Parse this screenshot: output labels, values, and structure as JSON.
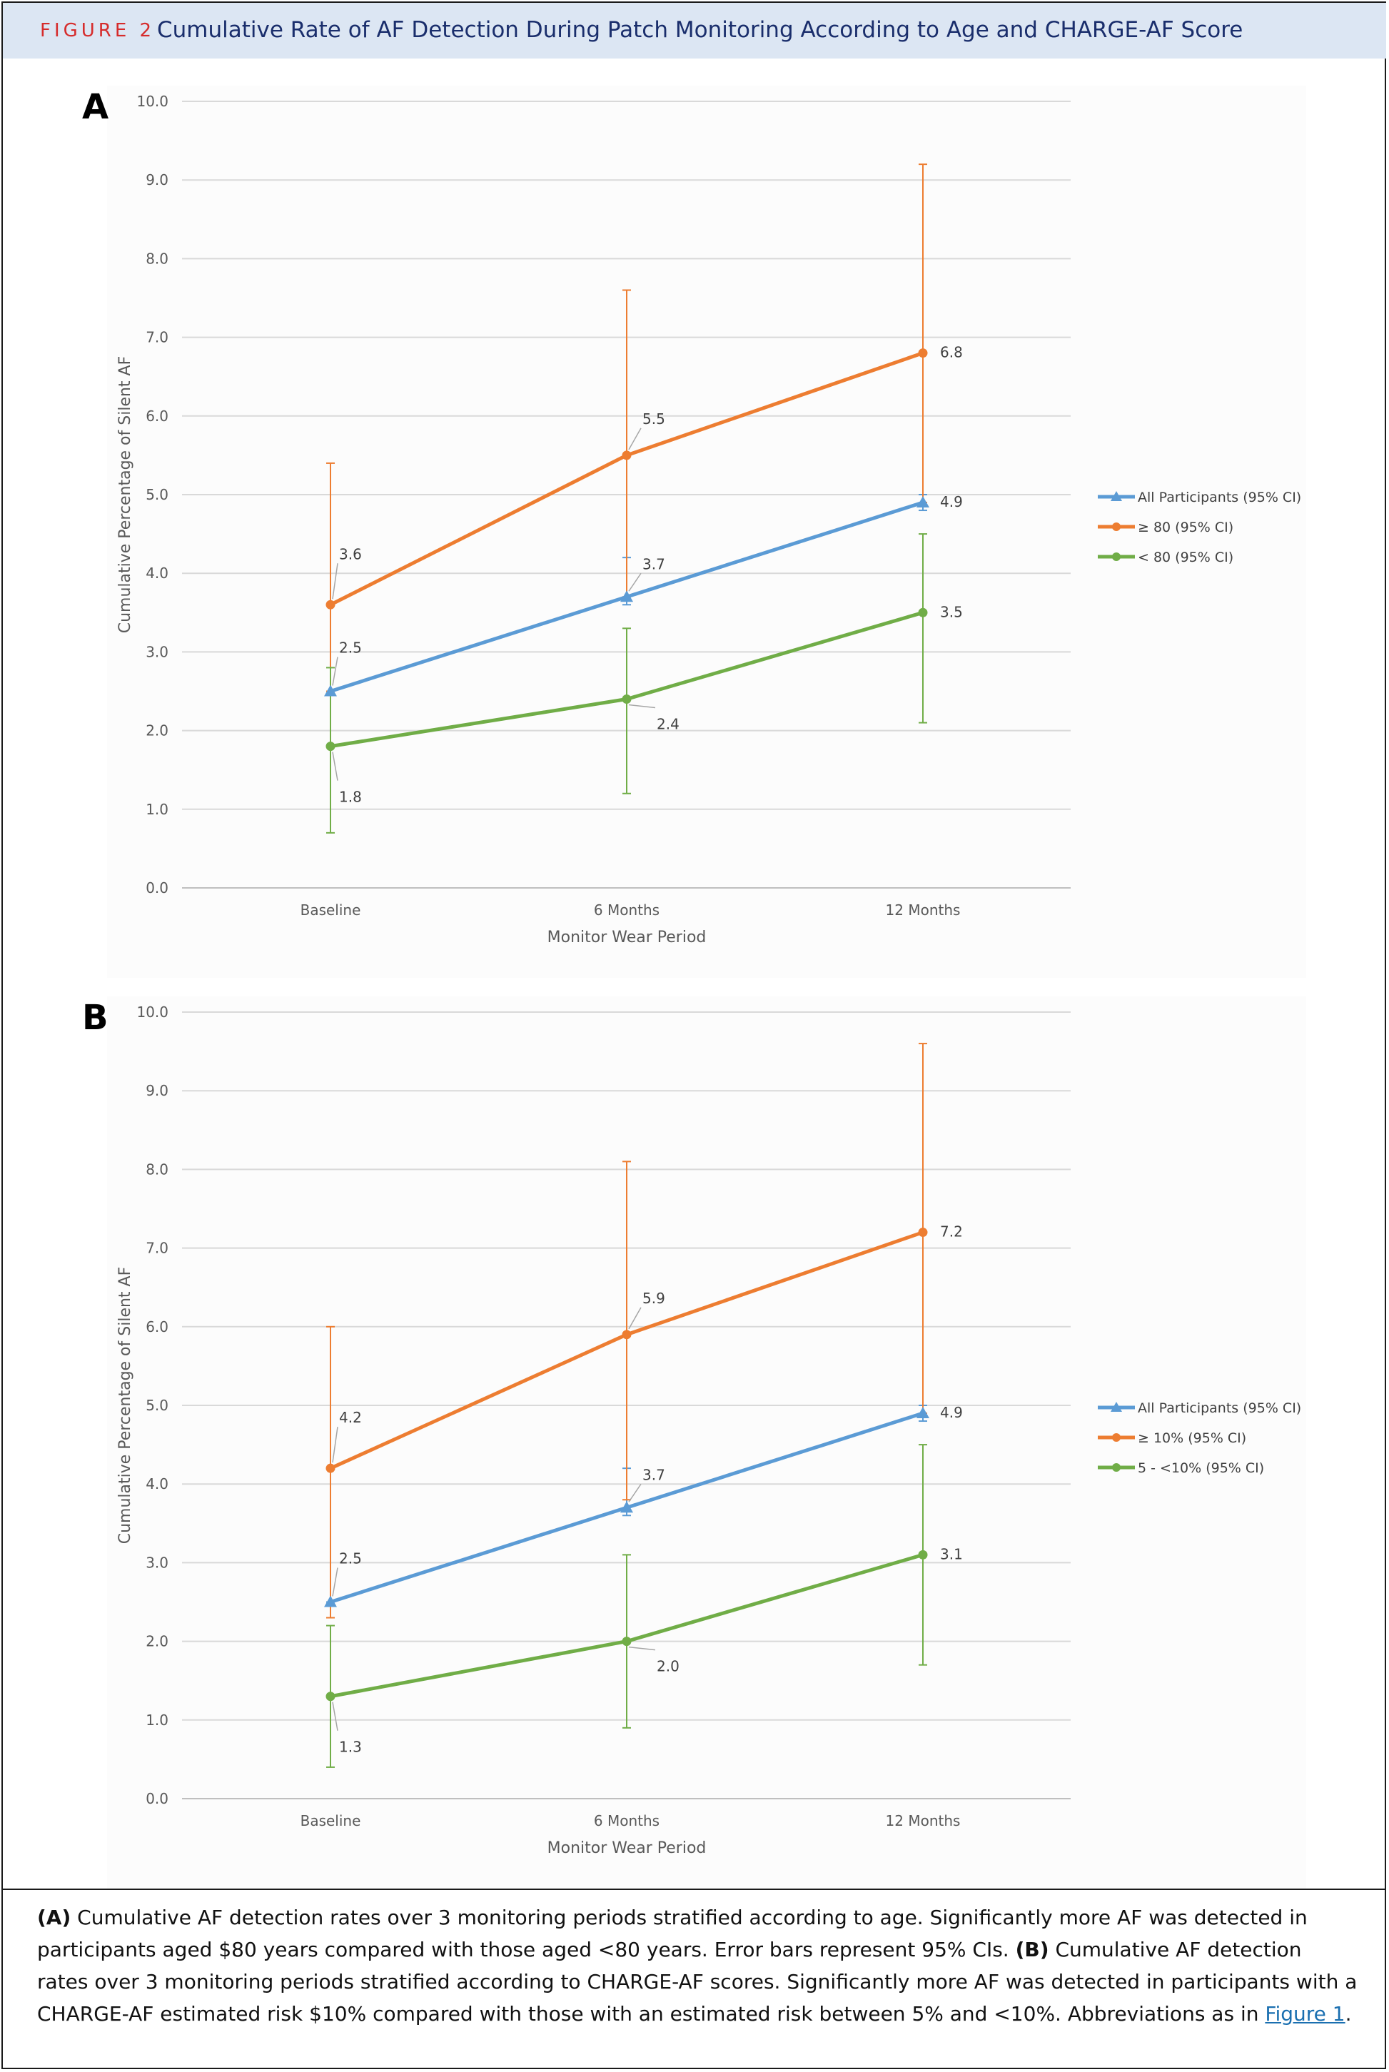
{
  "figure": {
    "label": "FIGURE 2",
    "title": "Cumulative Rate of AF Detection During Patch Monitoring According to Age and CHARGE-AF Score"
  },
  "caption": {
    "a_marker": "(A)",
    "a_text": " Cumulative AF detection rates over 3 monitoring periods stratified according to age. Significantly more AF was detected in participants aged $80 years compared with those aged <80 years. Error bars represent 95% CIs. ",
    "b_marker": "(B)",
    "b_text": " Cumulative AF detection rates over 3 monitoring periods stratified according to CHARGE-AF scores. Significantly more AF was detected in participants with a CHARGE-AF estimated risk $10% compared with those with an estimated risk between 5% and <10%. Abbreviations as in ",
    "link_text": "Figure 1",
    "end": "."
  },
  "chart_data": [
    {
      "panel": "A",
      "type": "line",
      "categories": [
        "Baseline",
        "6 Months",
        "12 Months"
      ],
      "xlabel": "Monitor Wear Period",
      "ylabel": "Cumulative Percentage of Silent AF",
      "ylim": [
        0,
        10
      ],
      "yticks": [
        "0.0",
        "1.0",
        "2.0",
        "3.0",
        "4.0",
        "5.0",
        "6.0",
        "7.0",
        "8.0",
        "9.0",
        "10.0"
      ],
      "grid": true,
      "legend_position": "right",
      "series": [
        {
          "name": "All Participants (95% CI)",
          "color": "#5b9bd5",
          "marker": "triangle",
          "values": [
            2.5,
            3.7,
            4.9
          ],
          "labels": [
            "2.5",
            "3.7",
            "4.9"
          ],
          "ci_low": [
            2.5,
            3.6,
            4.8
          ],
          "ci_high": [
            2.5,
            4.2,
            5.0
          ]
        },
        {
          "name": "≥ 80 (95% CI)",
          "color": "#ed7d31",
          "marker": "circle",
          "values": [
            3.6,
            5.5,
            6.8
          ],
          "labels": [
            "3.6",
            "5.5",
            "6.8"
          ],
          "ci_low": [
            2.5,
            3.7,
            4.9
          ],
          "ci_high": [
            5.4,
            7.6,
            9.2
          ]
        },
        {
          "name": "< 80 (95% CI)",
          "color": "#70ad47",
          "marker": "circle",
          "values": [
            1.8,
            2.4,
            3.5
          ],
          "labels": [
            "1.8",
            "2.4",
            "3.5"
          ],
          "ci_low": [
            0.7,
            1.2,
            2.1
          ],
          "ci_high": [
            2.8,
            3.3,
            4.5
          ]
        }
      ]
    },
    {
      "panel": "B",
      "type": "line",
      "categories": [
        "Baseline",
        "6 Months",
        "12 Months"
      ],
      "xlabel": "Monitor Wear Period",
      "ylabel": "Cumulative Percentage of Silent AF",
      "ylim": [
        0,
        10
      ],
      "yticks": [
        "0.0",
        "1.0",
        "2.0",
        "3.0",
        "4.0",
        "5.0",
        "6.0",
        "7.0",
        "8.0",
        "9.0",
        "10.0"
      ],
      "grid": true,
      "legend_position": "right",
      "series": [
        {
          "name": "All Participants (95% CI)",
          "color": "#5b9bd5",
          "marker": "triangle",
          "values": [
            2.5,
            3.7,
            4.9
          ],
          "labels": [
            "2.5",
            "3.7",
            "4.9"
          ],
          "ci_low": [
            2.5,
            3.6,
            4.8
          ],
          "ci_high": [
            2.5,
            4.2,
            5.0
          ]
        },
        {
          "name": "≥ 10% (95% CI)",
          "color": "#ed7d31",
          "marker": "circle",
          "values": [
            4.2,
            5.9,
            7.2
          ],
          "labels": [
            "4.2",
            "5.9",
            "7.2"
          ],
          "ci_low": [
            2.3,
            3.8,
            4.9
          ],
          "ci_high": [
            6.0,
            8.1,
            9.6
          ]
        },
        {
          "name": "5 - <10% (95% CI)",
          "color": "#70ad47",
          "marker": "circle",
          "values": [
            1.3,
            2.0,
            3.1
          ],
          "labels": [
            "1.3",
            "2.0",
            "3.1"
          ],
          "ci_low": [
            0.4,
            0.9,
            1.7
          ],
          "ci_high": [
            2.2,
            3.1,
            4.5
          ]
        }
      ]
    }
  ]
}
